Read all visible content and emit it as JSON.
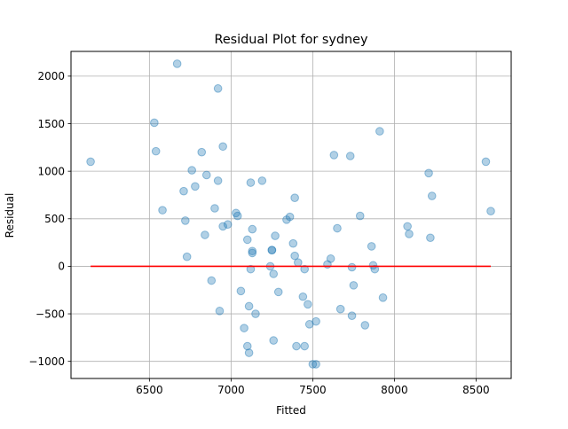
{
  "chart_data": {
    "type": "scatter",
    "title": "Residual Plot for sydney",
    "xlabel": "Fitted",
    "ylabel": "Residual",
    "xlim": [
      6020,
      8715
    ],
    "ylim": [
      -1180,
      2260
    ],
    "xticks": [
      6500,
      7000,
      7500,
      8000,
      8500
    ],
    "yticks": [
      -1000,
      -500,
      0,
      500,
      1000,
      1500,
      2000
    ],
    "grid": true,
    "point_color": "#1f77b4",
    "point_alpha": 0.35,
    "line_color": "#ff0000",
    "reference_line": {
      "x": [
        6140,
        8590
      ],
      "y": [
        0,
        0
      ]
    },
    "points": [
      [
        6140,
        1100
      ],
      [
        6530,
        1510
      ],
      [
        6540,
        1210
      ],
      [
        6580,
        590
      ],
      [
        6670,
        2130
      ],
      [
        6710,
        790
      ],
      [
        6720,
        480
      ],
      [
        6730,
        100
      ],
      [
        6760,
        1010
      ],
      [
        6780,
        840
      ],
      [
        6820,
        1200
      ],
      [
        6840,
        330
      ],
      [
        6850,
        960
      ],
      [
        6880,
        -150
      ],
      [
        6900,
        610
      ],
      [
        6920,
        1870
      ],
      [
        6920,
        900
      ],
      [
        6930,
        -470
      ],
      [
        6950,
        1260
      ],
      [
        6950,
        420
      ],
      [
        6980,
        440
      ],
      [
        7030,
        560
      ],
      [
        7040,
        530
      ],
      [
        7060,
        -260
      ],
      [
        7080,
        -650
      ],
      [
        7100,
        280
      ],
      [
        7110,
        -420
      ],
      [
        7100,
        -840
      ],
      [
        7110,
        -910
      ],
      [
        7120,
        880
      ],
      [
        7120,
        -30
      ],
      [
        7130,
        140
      ],
      [
        7130,
        160
      ],
      [
        7130,
        390
      ],
      [
        7150,
        -500
      ],
      [
        7190,
        900
      ],
      [
        7240,
        0
      ],
      [
        7250,
        170
      ],
      [
        7250,
        170
      ],
      [
        7260,
        -80
      ],
      [
        7260,
        -780
      ],
      [
        7270,
        320
      ],
      [
        7290,
        -270
      ],
      [
        7340,
        490
      ],
      [
        7360,
        520
      ],
      [
        7380,
        240
      ],
      [
        7390,
        110
      ],
      [
        7390,
        720
      ],
      [
        7400,
        -840
      ],
      [
        7410,
        40
      ],
      [
        7440,
        -320
      ],
      [
        7450,
        -30
      ],
      [
        7450,
        -840
      ],
      [
        7470,
        -400
      ],
      [
        7480,
        -610
      ],
      [
        7500,
        -1030
      ],
      [
        7520,
        -1030
      ],
      [
        7520,
        -580
      ],
      [
        7590,
        20
      ],
      [
        7610,
        80
      ],
      [
        7630,
        1170
      ],
      [
        7650,
        400
      ],
      [
        7670,
        -450
      ],
      [
        7730,
        1160
      ],
      [
        7740,
        -10
      ],
      [
        7740,
        -520
      ],
      [
        7750,
        -200
      ],
      [
        7790,
        530
      ],
      [
        7820,
        -620
      ],
      [
        7860,
        210
      ],
      [
        7870,
        10
      ],
      [
        7880,
        -30
      ],
      [
        7910,
        1420
      ],
      [
        7930,
        -330
      ],
      [
        8080,
        420
      ],
      [
        8090,
        340
      ],
      [
        8210,
        980
      ],
      [
        8220,
        300
      ],
      [
        8230,
        740
      ],
      [
        8560,
        1100
      ],
      [
        8590,
        580
      ]
    ]
  }
}
